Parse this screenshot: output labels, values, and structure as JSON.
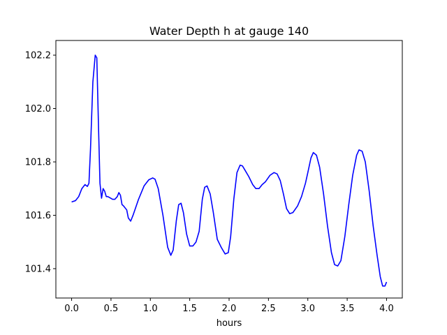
{
  "chart_data": {
    "type": "line",
    "title": "Water Depth h at gauge 140",
    "xlabel": "hours",
    "ylabel": "",
    "xlim": [
      -0.2,
      4.2
    ],
    "ylim": [
      101.29,
      102.255
    ],
    "xticks": [
      {
        "value": 0.0,
        "label": "0.0"
      },
      {
        "value": 0.5,
        "label": "0.5"
      },
      {
        "value": 1.0,
        "label": "1.0"
      },
      {
        "value": 1.5,
        "label": "1.5"
      },
      {
        "value": 2.0,
        "label": "2.0"
      },
      {
        "value": 2.5,
        "label": "2.5"
      },
      {
        "value": 3.0,
        "label": "3.0"
      },
      {
        "value": 3.5,
        "label": "3.5"
      },
      {
        "value": 4.0,
        "label": "4.0"
      }
    ],
    "yticks": [
      {
        "value": 101.4,
        "label": "101.4"
      },
      {
        "value": 101.6,
        "label": "101.6"
      },
      {
        "value": 101.8,
        "label": "101.8"
      },
      {
        "value": 102.0,
        "label": "102.0"
      },
      {
        "value": 102.2,
        "label": "102.2"
      }
    ],
    "grid": false,
    "series": [
      {
        "color": "#0000ff",
        "x": [
          0.0,
          0.05,
          0.09,
          0.13,
          0.17,
          0.2,
          0.22,
          0.24,
          0.27,
          0.3,
          0.32,
          0.34,
          0.36,
          0.38,
          0.4,
          0.42,
          0.44,
          0.46,
          0.49,
          0.52,
          0.55,
          0.58,
          0.6,
          0.62,
          0.64,
          0.66,
          0.7,
          0.72,
          0.75,
          0.78,
          0.85,
          0.92,
          0.98,
          1.03,
          1.06,
          1.1,
          1.16,
          1.22,
          1.26,
          1.29,
          1.33,
          1.36,
          1.39,
          1.42,
          1.46,
          1.5,
          1.54,
          1.58,
          1.62,
          1.66,
          1.69,
          1.72,
          1.76,
          1.8,
          1.85,
          1.9,
          1.95,
          1.99,
          2.02,
          2.06,
          2.1,
          2.14,
          2.17,
          2.2,
          2.25,
          2.3,
          2.34,
          2.38,
          2.42,
          2.46,
          2.52,
          2.57,
          2.61,
          2.65,
          2.69,
          2.73,
          2.77,
          2.81,
          2.87,
          2.92,
          2.97,
          3.0,
          3.04,
          3.07,
          3.11,
          3.15,
          3.2,
          3.25,
          3.3,
          3.34,
          3.38,
          3.42,
          3.47,
          3.52,
          3.57,
          3.62,
          3.65,
          3.69,
          3.73,
          3.78,
          3.83,
          3.88,
          3.92,
          3.95,
          3.98,
          4.0
        ],
        "y": [
          101.65,
          101.655,
          101.67,
          101.7,
          101.715,
          101.708,
          101.72,
          101.85,
          102.1,
          102.2,
          102.19,
          101.95,
          101.72,
          101.664,
          101.7,
          101.69,
          101.67,
          101.67,
          101.665,
          101.66,
          101.66,
          101.67,
          101.685,
          101.675,
          101.64,
          101.635,
          101.62,
          101.59,
          101.578,
          101.6,
          101.66,
          101.71,
          101.733,
          101.74,
          101.735,
          101.7,
          101.6,
          101.48,
          101.45,
          101.47,
          101.58,
          101.64,
          101.645,
          101.61,
          101.53,
          101.485,
          101.485,
          101.5,
          101.54,
          101.66,
          101.705,
          101.71,
          101.68,
          101.61,
          101.51,
          101.48,
          101.455,
          101.46,
          101.52,
          101.66,
          101.76,
          101.788,
          101.785,
          101.77,
          101.745,
          101.715,
          101.7,
          101.7,
          101.715,
          101.725,
          101.75,
          101.76,
          101.755,
          101.73,
          101.68,
          101.625,
          101.606,
          101.61,
          101.635,
          101.67,
          101.72,
          101.76,
          101.815,
          101.835,
          101.825,
          101.78,
          101.68,
          101.56,
          101.46,
          101.415,
          101.41,
          101.43,
          101.52,
          101.64,
          101.75,
          101.825,
          101.845,
          101.84,
          101.8,
          101.69,
          101.56,
          101.45,
          101.37,
          101.335,
          101.335,
          101.35
        ]
      }
    ]
  }
}
